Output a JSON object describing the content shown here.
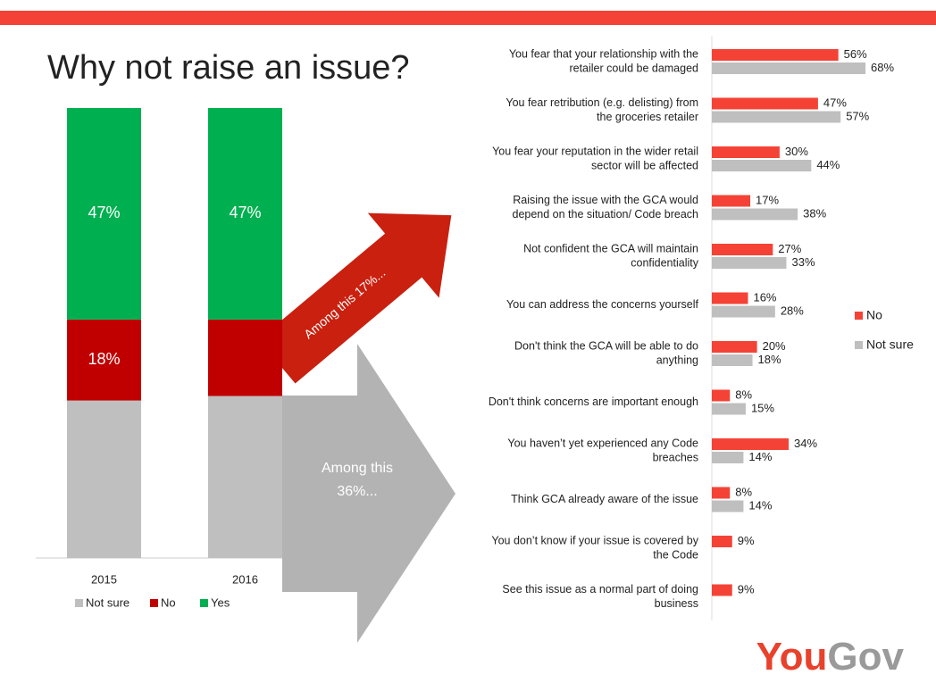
{
  "title": "Why not raise an issue?",
  "annotations": {
    "red_arrow": "Among this 17%...",
    "gray_arrow": [
      "Among this",
      "36%..."
    ]
  },
  "logo": [
    "You",
    "Gov"
  ],
  "chart_data": [
    {
      "type": "stacked_bar",
      "categories": [
        "2015",
        "2016"
      ],
      "series": [
        {
          "name": "Not sure",
          "color": "#bfbfbf",
          "values": [
            35,
            36
          ],
          "value_labels": [
            null,
            null
          ]
        },
        {
          "name": "No",
          "color": "#c00000",
          "values": [
            18,
            17
          ],
          "value_labels": [
            "18%",
            null
          ]
        },
        {
          "name": "Yes",
          "color": "#00b050",
          "values": [
            47,
            47
          ],
          "value_labels": [
            "47%",
            "47%"
          ]
        }
      ],
      "ylim": [
        0,
        100
      ]
    },
    {
      "type": "hbar",
      "categories": [
        [
          "You fear that your relationship with the",
          "retailer could be damaged"
        ],
        [
          "You fear retribution (e.g. delisting) from",
          "the groceries retailer"
        ],
        [
          "You fear your reputation in the wider retail",
          "sector will be affected"
        ],
        [
          "Raising the issue with the GCA would",
          "depend on the situation/ Code breach"
        ],
        [
          "Not confident the GCA will maintain",
          "confidentiality"
        ],
        [
          "You can address the concerns yourself"
        ],
        [
          "Don't think the GCA will be able to do",
          "anything"
        ],
        [
          "Don't think concerns are important enough"
        ],
        [
          "You haven’t yet experienced any Code",
          "breaches"
        ],
        [
          "Think GCA already aware of the issue"
        ],
        [
          "You don’t know if your issue is covered by",
          "the Code"
        ],
        [
          "See this issue as a normal part of doing",
          "business"
        ]
      ],
      "series": [
        {
          "name": "No",
          "color": "#f44336",
          "values": [
            56,
            47,
            30,
            17,
            27,
            16,
            20,
            8,
            34,
            8,
            9,
            9
          ],
          "value_labels": [
            "56%",
            "47%",
            "30%",
            "17%",
            "27%",
            "16%",
            "20%",
            "8%",
            "34%",
            "8%",
            "9%",
            "9%"
          ]
        },
        {
          "name": "Not sure",
          "color": "#bfbfbf",
          "values": [
            68,
            57,
            44,
            38,
            33,
            28,
            18,
            15,
            14,
            14,
            null,
            null
          ],
          "value_labels": [
            "68%",
            "57%",
            "44%",
            "38%",
            "33%",
            "28%",
            "18%",
            "15%",
            "14%",
            "14%",
            null,
            null
          ]
        }
      ],
      "xlim": [
        0,
        100
      ]
    }
  ]
}
